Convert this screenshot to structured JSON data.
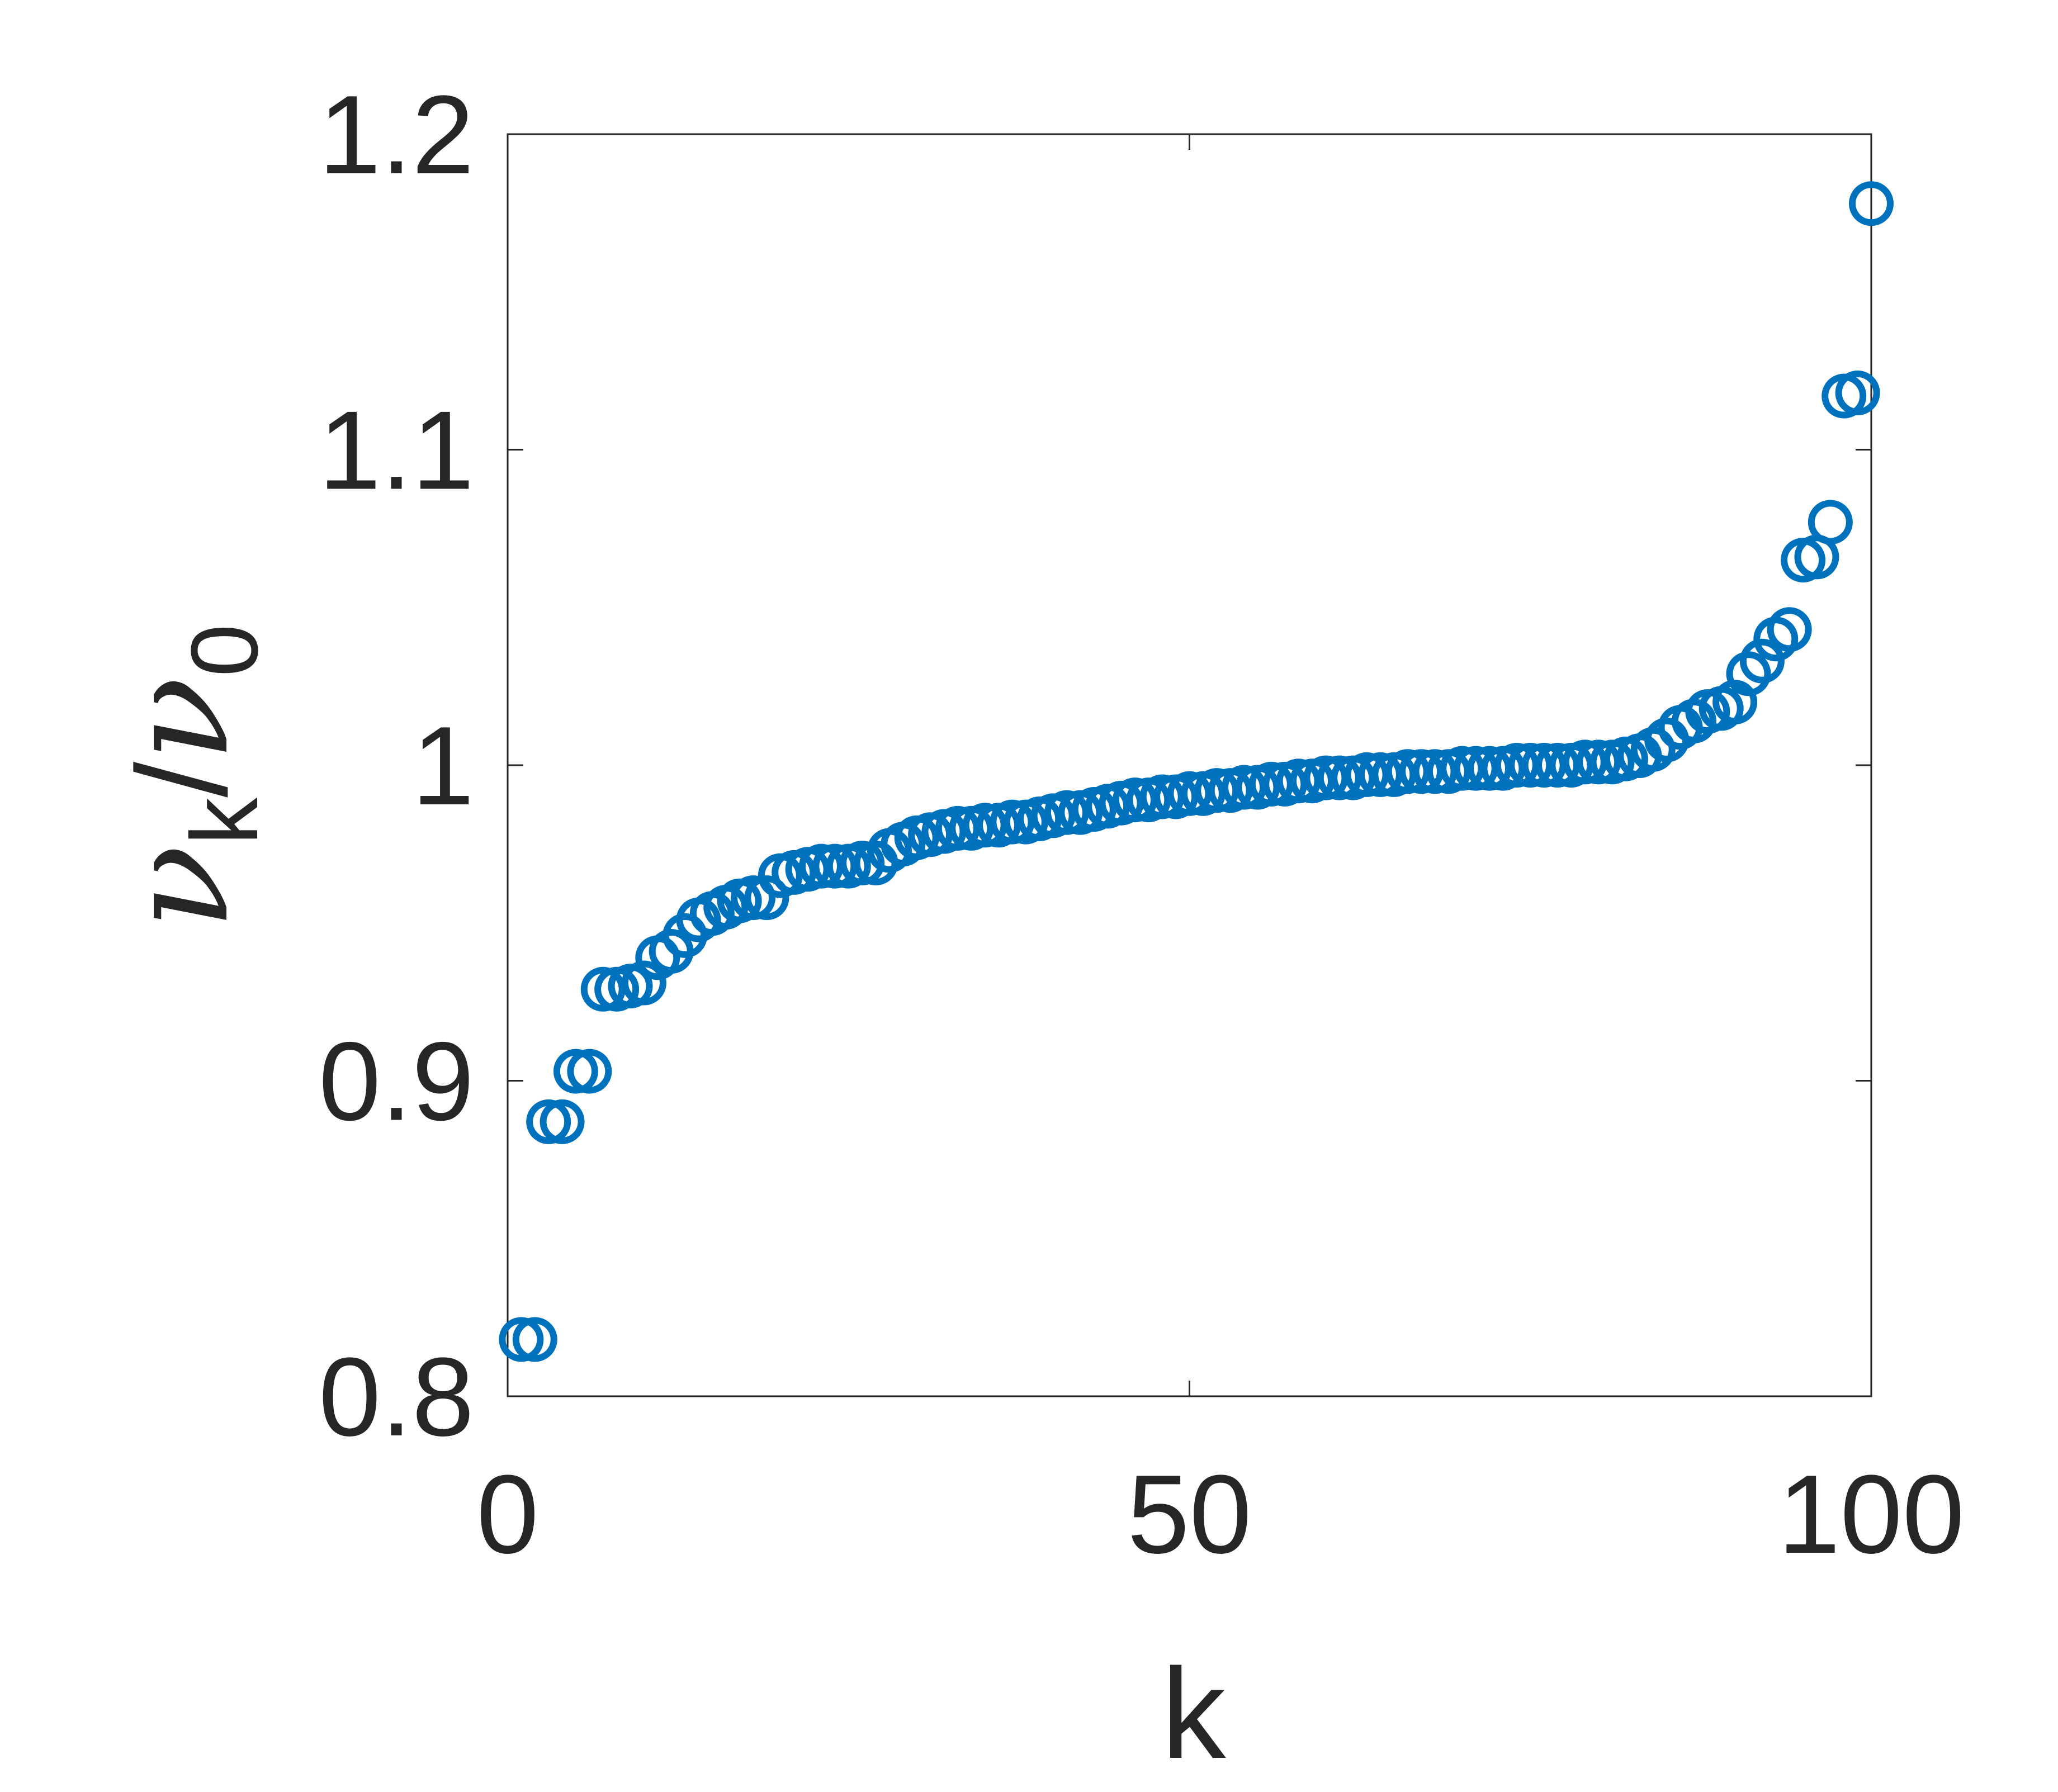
{
  "chart_data": {
    "type": "scatter",
    "title": "",
    "xlabel": "k",
    "ylabel": {
      "symbol": "ν",
      "numerator_sub": "k",
      "slash": "/",
      "denominator_sub": "0"
    },
    "xlim": [
      0,
      100
    ],
    "ylim": [
      0.8,
      1.2
    ],
    "xticks": [
      0,
      50,
      100
    ],
    "xtick_labels": [
      "0",
      "50",
      "100"
    ],
    "yticks": [
      0.8,
      0.9,
      1.0,
      1.1,
      1.2
    ],
    "ytick_labels": [
      "0.8",
      "0.9",
      "1",
      "1.1",
      "1.2"
    ],
    "grid": false,
    "marker": "circle-open",
    "color": "#0072BD",
    "series": [
      {
        "x": [
          1,
          2,
          3,
          4,
          5,
          6,
          7,
          8,
          9,
          10,
          11,
          12,
          13,
          14,
          15,
          16,
          17,
          18,
          19,
          20,
          21,
          22,
          23,
          24,
          25,
          26,
          27,
          28,
          29,
          30,
          31,
          32,
          33,
          34,
          35,
          36,
          37,
          38,
          39,
          40,
          41,
          42,
          43,
          44,
          45,
          46,
          47,
          48,
          49,
          50,
          51,
          52,
          53,
          54,
          55,
          56,
          57,
          58,
          59,
          60,
          61,
          62,
          63,
          64,
          65,
          66,
          67,
          68,
          69,
          70,
          71,
          72,
          73,
          74,
          75,
          76,
          77,
          78,
          79,
          80,
          81,
          82,
          83,
          84,
          85,
          86,
          87,
          88,
          89,
          90,
          91,
          92,
          93,
          94,
          95,
          96,
          97,
          98,
          99,
          100
        ],
        "y": [
          0.818,
          0.818,
          0.887,
          0.887,
          0.903,
          0.903,
          0.929,
          0.929,
          0.93,
          0.931,
          0.939,
          0.941,
          0.946,
          0.951,
          0.953,
          0.955,
          0.957,
          0.958,
          0.958,
          0.965,
          0.966,
          0.967,
          0.968,
          0.968,
          0.968,
          0.969,
          0.969,
          0.973,
          0.975,
          0.977,
          0.978,
          0.979,
          0.98,
          0.98,
          0.981,
          0.981,
          0.982,
          0.982,
          0.983,
          0.984,
          0.985,
          0.985,
          0.986,
          0.987,
          0.988,
          0.989,
          0.989,
          0.99,
          0.99,
          0.991,
          0.991,
          0.992,
          0.992,
          0.993,
          0.993,
          0.994,
          0.994,
          0.995,
          0.995,
          0.996,
          0.996,
          0.996,
          0.997,
          0.997,
          0.997,
          0.998,
          0.998,
          0.998,
          0.998,
          0.999,
          0.999,
          0.999,
          0.999,
          1.0,
          1.0,
          1.0,
          1.0,
          1.0,
          1.001,
          1.001,
          1.001,
          1.002,
          1.003,
          1.005,
          1.008,
          1.012,
          1.014,
          1.017,
          1.018,
          1.02,
          1.029,
          1.033,
          1.04,
          1.043,
          1.065,
          1.066,
          1.077,
          1.117,
          1.118,
          1.178
        ]
      }
    ]
  }
}
